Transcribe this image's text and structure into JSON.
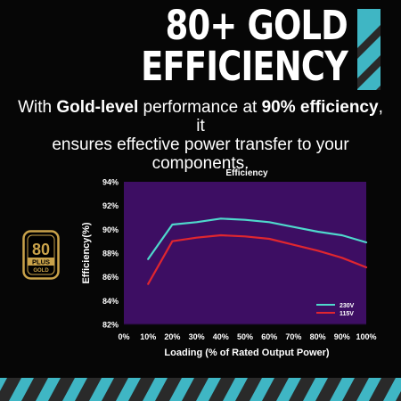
{
  "headline": {
    "line1": "80+ GOLD",
    "line2": "EFFICIENCY"
  },
  "subtitle": {
    "part1": "With ",
    "bold1": "Gold-level",
    "part2": " performance at ",
    "bold2": "90% efficiency",
    "part3": ", it",
    "line2": "ensures effective power transfer to your",
    "line3": "components."
  },
  "badge": {
    "number": "80",
    "plus": "PLUS",
    "tier": "GOLD"
  },
  "colors": {
    "plot_background": "#3d0e63",
    "series_230v": "#4fd8cc",
    "series_115v": "#e0262f",
    "gold": "#c9a24a",
    "stripe_cyan": "#3fb6c4",
    "stripe_dark": "#2a2a2a"
  },
  "chart_data": {
    "type": "line",
    "title": "Efficiency",
    "xlabel": "Loading (% of Rated Output Power)",
    "ylabel": "Efficiency(%)",
    "x_ticks": [
      "0%",
      "10%",
      "20%",
      "30%",
      "40%",
      "50%",
      "60%",
      "70%",
      "80%",
      "90%",
      "100%"
    ],
    "y_ticks": [
      "82%",
      "84%",
      "86%",
      "88%",
      "90%",
      "92%",
      "94%"
    ],
    "xlim": [
      0,
      100
    ],
    "ylim": [
      82,
      94
    ],
    "grid": false,
    "legend_position": "bottom-right",
    "series": [
      {
        "name": "230V",
        "color": "#4fd8cc",
        "x": [
          10,
          20,
          30,
          40,
          50,
          60,
          70,
          80,
          90,
          100
        ],
        "y": [
          87.5,
          90.4,
          90.6,
          90.9,
          90.8,
          90.6,
          90.2,
          89.8,
          89.5,
          88.9
        ]
      },
      {
        "name": "115V",
        "color": "#e0262f",
        "x": [
          10,
          20,
          30,
          40,
          50,
          60,
          70,
          80,
          90,
          100
        ],
        "y": [
          85.4,
          89.0,
          89.3,
          89.5,
          89.4,
          89.2,
          88.7,
          88.2,
          87.6,
          86.8
        ]
      }
    ]
  }
}
